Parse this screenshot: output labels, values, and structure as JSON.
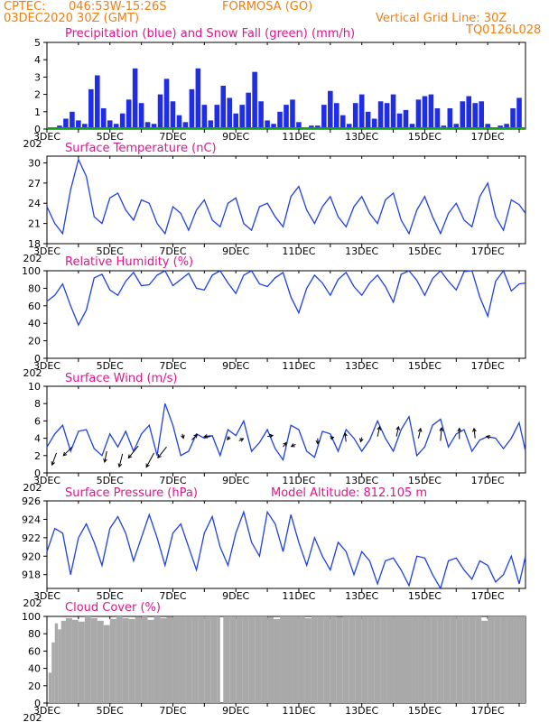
{
  "header": {
    "source": "CPTEC:",
    "coords": "046:53W-15:26S",
    "location": "FORMOSA (GO)",
    "date": "03DEC2020 30Z (GMT)",
    "grid": "Vertical Grid Line: 30Z",
    "code": "TQ0126L028"
  },
  "x_date_labels": [
    "3DEC",
    "5DEC",
    "7DEC",
    "9DEC",
    "11DEC",
    "13DEC",
    "15DEC",
    "17DEC"
  ],
  "x_corner_label": "202",
  "colors": {
    "header": "#f07f12",
    "title": "#e0168c",
    "precip": "#1f2ee6",
    "snow": "#18a018",
    "line": "#1f40e6",
    "cloud": "#a9a9a9"
  },
  "chart_data": [
    {
      "type": "bar",
      "title": "Precipitation (blue) and Snow Fall (green) (mm/h)",
      "ylim": [
        0,
        5
      ],
      "yticks": [
        0,
        1,
        2,
        3,
        4,
        5
      ],
      "x_range_days": [
        3,
        18.2
      ],
      "series": [
        {
          "name": "Precipitation",
          "x": [
            3.2,
            3.4,
            3.6,
            3.8,
            4.0,
            4.2,
            4.4,
            4.6,
            4.8,
            5.0,
            5.2,
            5.4,
            5.6,
            5.8,
            6.0,
            6.2,
            6.4,
            6.6,
            6.8,
            7.0,
            7.2,
            7.4,
            7.6,
            7.8,
            8.0,
            8.2,
            8.4,
            8.6,
            8.8,
            9.0,
            9.2,
            9.4,
            9.6,
            9.8,
            10.0,
            10.2,
            10.4,
            10.6,
            10.8,
            11.0,
            11.2,
            11.4,
            11.6,
            11.8,
            12.0,
            12.2,
            12.4,
            12.6,
            12.8,
            13.0,
            13.2,
            13.4,
            13.6,
            13.8,
            14.0,
            14.2,
            14.4,
            14.6,
            14.8,
            15.0,
            15.2,
            15.4,
            15.6,
            15.8,
            16.0,
            16.2,
            16.4,
            16.6,
            16.8,
            17.0,
            17.2,
            17.4,
            17.6,
            17.8,
            18.0
          ],
          "values": [
            0.1,
            0.2,
            0.6,
            1.0,
            0.5,
            0.3,
            2.3,
            3.1,
            1.2,
            0.5,
            0.3,
            0.9,
            1.7,
            3.5,
            1.5,
            0.4,
            0.3,
            2.0,
            2.9,
            1.6,
            0.8,
            0.4,
            2.3,
            3.5,
            1.4,
            0.5,
            1.4,
            2.5,
            1.8,
            0.9,
            1.4,
            2.1,
            3.3,
            1.6,
            0.5,
            0.3,
            1.0,
            1.4,
            1.7,
            0.4,
            0.1,
            0.2,
            0.2,
            1.4,
            2.2,
            1.5,
            0.8,
            0.3,
            1.5,
            2.0,
            1.0,
            0.6,
            1.6,
            1.5,
            2.0,
            0.9,
            1.1,
            0.3,
            1.7,
            1.9,
            2.0,
            1.2,
            0.2,
            1.2,
            0.3,
            1.6,
            1.9,
            1.5,
            1.6,
            0.3,
            0.1,
            0.2,
            0.3,
            1.2,
            1.8
          ]
        },
        {
          "name": "Snow Fall",
          "x": [
            3.0,
            18.2
          ],
          "values": [
            0,
            0
          ]
        }
      ]
    },
    {
      "type": "line",
      "title": "Surface Temperature (nC)",
      "ylim": [
        18,
        31
      ],
      "yticks": [
        18,
        21,
        24,
        27,
        30
      ],
      "series": [
        {
          "name": "Temperature",
          "x": [
            3.0,
            3.25,
            3.5,
            3.75,
            4.0,
            4.25,
            4.5,
            4.75,
            5.0,
            5.25,
            5.5,
            5.75,
            6.0,
            6.25,
            6.5,
            6.75,
            7.0,
            7.25,
            7.5,
            7.75,
            8.0,
            8.25,
            8.5,
            8.75,
            9.0,
            9.25,
            9.5,
            9.75,
            10.0,
            10.25,
            10.5,
            10.75,
            11.0,
            11.25,
            11.5,
            11.75,
            12.0,
            12.25,
            12.5,
            12.75,
            13.0,
            13.25,
            13.5,
            13.75,
            14.0,
            14.25,
            14.5,
            14.75,
            15.0,
            15.25,
            15.5,
            15.75,
            16.0,
            16.25,
            16.5,
            16.75,
            17.0,
            17.25,
            17.5,
            17.75,
            18.0,
            18.2
          ],
          "values": [
            23.5,
            21.0,
            19.5,
            26.0,
            30.5,
            28.0,
            22.0,
            21.0,
            24.8,
            25.5,
            23.0,
            21.5,
            24.5,
            24.0,
            21.0,
            19.5,
            23.5,
            22.5,
            20.0,
            23.0,
            24.5,
            21.5,
            20.5,
            24.0,
            24.8,
            21.0,
            20.0,
            23.5,
            24.0,
            22.0,
            20.5,
            25.0,
            26.5,
            23.0,
            21.0,
            23.5,
            25.0,
            22.0,
            20.5,
            23.5,
            25.0,
            22.5,
            21.0,
            24.5,
            25.5,
            21.5,
            19.5,
            23.0,
            25.0,
            22.0,
            19.5,
            22.5,
            24.0,
            21.5,
            20.5,
            25.0,
            27.0,
            22.0,
            20.0,
            24.5,
            23.8,
            22.5
          ]
        }
      ]
    },
    {
      "type": "line",
      "title": "Relative Humidity (%)",
      "ylim": [
        0,
        100
      ],
      "yticks": [
        0,
        20,
        40,
        60,
        80,
        100
      ],
      "series": [
        {
          "name": "Relative Humidity",
          "x": [
            3.0,
            3.25,
            3.5,
            3.75,
            4.0,
            4.25,
            4.5,
            4.75,
            5.0,
            5.25,
            5.5,
            5.75,
            6.0,
            6.25,
            6.5,
            6.75,
            7.0,
            7.25,
            7.5,
            7.75,
            8.0,
            8.25,
            8.5,
            8.75,
            9.0,
            9.25,
            9.5,
            9.75,
            10.0,
            10.25,
            10.5,
            10.75,
            11.0,
            11.25,
            11.5,
            11.75,
            12.0,
            12.25,
            12.5,
            12.75,
            13.0,
            13.25,
            13.5,
            13.75,
            14.0,
            14.25,
            14.5,
            14.75,
            15.0,
            15.25,
            15.5,
            15.75,
            16.0,
            16.25,
            16.5,
            16.75,
            17.0,
            17.25,
            17.5,
            17.75,
            18.0,
            18.2
          ],
          "values": [
            65,
            72,
            85,
            60,
            38,
            55,
            92,
            96,
            78,
            72,
            88,
            98,
            83,
            84,
            95,
            100,
            83,
            90,
            97,
            80,
            78,
            95,
            100,
            86,
            74,
            95,
            100,
            85,
            82,
            92,
            98,
            70,
            52,
            80,
            95,
            86,
            72,
            90,
            98,
            82,
            72,
            86,
            95,
            82,
            64,
            96,
            100,
            89,
            72,
            91,
            100,
            88,
            78,
            99,
            100,
            70,
            48,
            88,
            100,
            77,
            85,
            86
          ]
        }
      ]
    },
    {
      "type": "line",
      "title": "Surface Wind (m/s)",
      "ylim": [
        0,
        10
      ],
      "yticks": [
        0,
        2,
        4,
        6,
        8,
        10
      ],
      "series": [
        {
          "name": "Wind speed",
          "x": [
            3.0,
            3.25,
            3.5,
            3.75,
            4.0,
            4.25,
            4.5,
            4.75,
            5.0,
            5.25,
            5.5,
            5.75,
            6.0,
            6.25,
            6.5,
            6.75,
            7.0,
            7.25,
            7.5,
            7.75,
            8.0,
            8.25,
            8.5,
            8.75,
            9.0,
            9.25,
            9.5,
            9.75,
            10.0,
            10.25,
            10.5,
            10.75,
            11.0,
            11.25,
            11.5,
            11.75,
            12.0,
            12.25,
            12.5,
            12.75,
            13.0,
            13.25,
            13.5,
            13.75,
            14.0,
            14.25,
            14.5,
            14.75,
            15.0,
            15.25,
            15.5,
            15.75,
            16.0,
            16.25,
            16.5,
            16.75,
            17.0,
            17.25,
            17.5,
            17.75,
            18.0,
            18.2
          ],
          "values": [
            3.0,
            4.5,
            5.5,
            2.5,
            4.8,
            5.0,
            2.8,
            2.0,
            4.5,
            3.0,
            4.8,
            2.5,
            4.5,
            5.5,
            2.0,
            8.0,
            5.5,
            2.0,
            2.5,
            4.5,
            4.0,
            4.3,
            2.0,
            5.0,
            4.3,
            6.0,
            2.5,
            3.5,
            5.0,
            2.8,
            1.5,
            5.5,
            5.0,
            2.5,
            1.8,
            4.8,
            4.5,
            2.5,
            5.0,
            4.0,
            2.5,
            3.8,
            6.0,
            4.0,
            2.5,
            5.0,
            6.5,
            2.0,
            3.0,
            5.5,
            6.2,
            3.0,
            4.5,
            5.0,
            2.5,
            3.8,
            4.2,
            4.0,
            2.8,
            4.0,
            5.8,
            2.5
          ]
        }
      ],
      "arrows": [
        {
          "x": 3.3,
          "y": 2.3,
          "dx": -0.4,
          "dy": 1.1
        },
        {
          "x": 3.8,
          "y": 3.0,
          "dx": -0.8,
          "dy": 0.8
        },
        {
          "x": 4.9,
          "y": 2.5,
          "dx": -0.2,
          "dy": 1.0
        },
        {
          "x": 5.4,
          "y": 2.2,
          "dx": -0.3,
          "dy": 1.2
        },
        {
          "x": 5.9,
          "y": 3.1,
          "dx": -0.9,
          "dy": 1.1
        },
        {
          "x": 6.4,
          "y": 2.3,
          "dx": -0.7,
          "dy": 1.3
        },
        {
          "x": 6.8,
          "y": 3.0,
          "dx": -0.8,
          "dy": 1.0
        },
        {
          "x": 7.3,
          "y": 4.5,
          "dx": 0.1,
          "dy": 0.4
        },
        {
          "x": 7.6,
          "y": 3.8,
          "dx": 0.5,
          "dy": -0.5
        },
        {
          "x": 8.2,
          "y": 4.3,
          "dx": -0.6,
          "dy": 0.1
        },
        {
          "x": 8.8,
          "y": 4.2,
          "dx": -0.2,
          "dy": 0.3
        },
        {
          "x": 9.1,
          "y": 3.7,
          "dx": 0.4,
          "dy": -0.2
        },
        {
          "x": 10.0,
          "y": 4.2,
          "dx": 0.5,
          "dy": -0.1
        },
        {
          "x": 10.5,
          "y": 3.0,
          "dx": 0.3,
          "dy": -0.4
        },
        {
          "x": 10.9,
          "y": 3.3,
          "dx": -0.4,
          "dy": 0.2
        },
        {
          "x": 11.6,
          "y": 4.0,
          "dx": 0.0,
          "dy": 0.5
        },
        {
          "x": 12.0,
          "y": 4.0,
          "dx": 0.3,
          "dy": -0.1
        },
        {
          "x": 12.5,
          "y": 3.6,
          "dx": -0.1,
          "dy": -0.8
        },
        {
          "x": 13.0,
          "y": 4.1,
          "dx": -0.1,
          "dy": 0.4
        },
        {
          "x": 13.5,
          "y": 4.2,
          "dx": 0.2,
          "dy": -0.9
        },
        {
          "x": 14.1,
          "y": 4.2,
          "dx": 0.2,
          "dy": -0.9
        },
        {
          "x": 14.8,
          "y": 4.0,
          "dx": 0.2,
          "dy": -0.9
        },
        {
          "x": 15.5,
          "y": 3.7,
          "dx": 0.1,
          "dy": -1.2
        },
        {
          "x": 16.1,
          "y": 3.9,
          "dx": 0.0,
          "dy": -1.0
        },
        {
          "x": 16.6,
          "y": 4.0,
          "dx": -0.1,
          "dy": -0.9
        },
        {
          "x": 17.1,
          "y": 4.1,
          "dx": -0.4,
          "dy": -0.1
        }
      ]
    },
    {
      "type": "line",
      "title": "Surface Pressure (hPa)",
      "annotation": "Model Altitude: 812.105 m",
      "ylim": [
        916.5,
        926
      ],
      "yticks": [
        918,
        920,
        922,
        924,
        926
      ],
      "series": [
        {
          "name": "Surface Pressure",
          "x": [
            3.0,
            3.25,
            3.5,
            3.75,
            4.0,
            4.25,
            4.5,
            4.75,
            5.0,
            5.25,
            5.5,
            5.75,
            6.0,
            6.25,
            6.5,
            6.75,
            7.0,
            7.25,
            7.5,
            7.75,
            8.0,
            8.25,
            8.5,
            8.75,
            9.0,
            9.25,
            9.5,
            9.75,
            10.0,
            10.25,
            10.5,
            10.75,
            11.0,
            11.25,
            11.5,
            11.75,
            12.0,
            12.25,
            12.5,
            12.75,
            13.0,
            13.25,
            13.5,
            13.75,
            14.0,
            14.25,
            14.5,
            14.75,
            15.0,
            15.25,
            15.5,
            15.75,
            16.0,
            16.25,
            16.5,
            16.75,
            17.0,
            17.25,
            17.5,
            17.75,
            18.0,
            18.2
          ],
          "values": [
            920.5,
            923.0,
            922.5,
            918.0,
            922.0,
            923.5,
            921.5,
            919.0,
            923.0,
            924.3,
            922.5,
            919.5,
            922.0,
            924.5,
            922.0,
            919.0,
            922.5,
            923.5,
            921.0,
            918.5,
            922.5,
            924.3,
            921.0,
            919.0,
            922.5,
            924.8,
            921.5,
            920.0,
            924.8,
            923.5,
            920.5,
            924.5,
            921.5,
            919.0,
            922.0,
            920.0,
            918.5,
            921.5,
            920.5,
            918.0,
            920.5,
            919.5,
            917.0,
            919.5,
            919.8,
            918.5,
            916.8,
            920.0,
            919.8,
            918.0,
            916.5,
            919.5,
            919.8,
            918.5,
            917.5,
            919.5,
            919.0,
            917.2,
            918.0,
            920.0,
            917.0,
            920.0
          ]
        }
      ]
    },
    {
      "type": "bar",
      "title": "Cloud Cover (%)",
      "ylim": [
        0,
        100
      ],
      "yticks": [
        0,
        20,
        40,
        60,
        80,
        100
      ],
      "series": [
        {
          "name": "Cloud Cover",
          "x": [
            3.05,
            3.15,
            3.25,
            3.35,
            3.45,
            3.6,
            3.8,
            4.0,
            4.2,
            4.4,
            4.6,
            4.8,
            5.0,
            5.2,
            5.4,
            5.6,
            5.8,
            6.0,
            6.2,
            6.4,
            6.6,
            6.8,
            7.0,
            7.2,
            7.4,
            7.6,
            7.8,
            8.0,
            8.2,
            8.4,
            8.5,
            8.6,
            8.8,
            9.0,
            9.2,
            9.4,
            9.6,
            9.8,
            10.0,
            10.2,
            10.4,
            10.6,
            10.8,
            11.0,
            11.2,
            11.4,
            11.6,
            11.8,
            12.0,
            12.2,
            12.4,
            12.6,
            12.8,
            13.0,
            13.2,
            13.4,
            13.6,
            13.8,
            14.0,
            14.2,
            14.4,
            14.6,
            14.8,
            15.0,
            15.2,
            15.4,
            15.6,
            15.8,
            16.0,
            16.2,
            16.4,
            16.6,
            16.8,
            17.0,
            17.2,
            17.4,
            17.6,
            17.8,
            18.0
          ],
          "values": [
            35,
            70,
            92,
            85,
            95,
            98,
            96,
            94,
            100,
            98,
            95,
            90,
            97,
            100,
            98,
            97,
            99,
            100,
            96,
            100,
            98,
            99,
            100,
            100,
            100,
            100,
            100,
            100,
            100,
            100,
            0,
            100,
            100,
            100,
            100,
            100,
            100,
            100,
            99,
            97,
            100,
            100,
            100,
            100,
            98,
            100,
            100,
            100,
            100,
            99,
            100,
            100,
            100,
            100,
            100,
            100,
            100,
            100,
            100,
            100,
            100,
            100,
            100,
            100,
            100,
            100,
            100,
            100,
            100,
            100,
            100,
            100,
            95,
            100,
            100,
            100,
            100,
            100,
            100
          ]
        }
      ]
    }
  ]
}
